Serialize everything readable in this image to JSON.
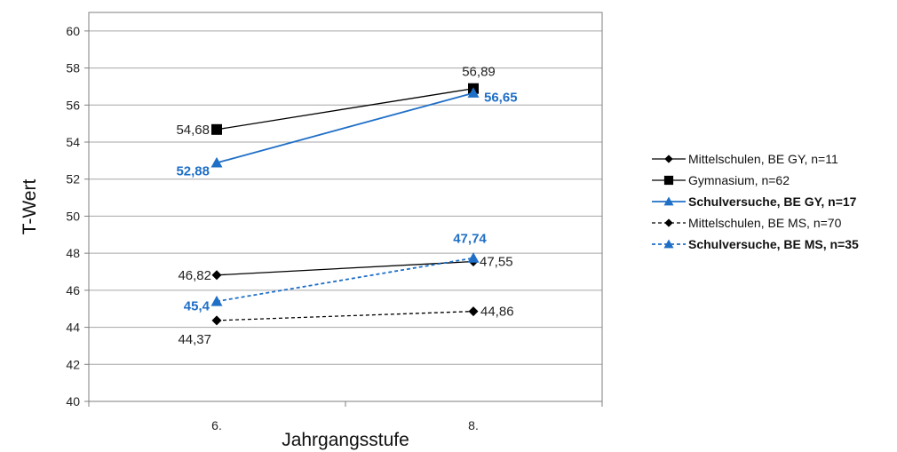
{
  "chart_data": {
    "type": "line",
    "categories": [
      "6.",
      "8."
    ],
    "xlabel": "Jahrgangsstufe",
    "ylabel": "T-Wert",
    "ylim": [
      40,
      61
    ],
    "yticks": [
      "40",
      "42",
      "44",
      "46",
      "48",
      "50",
      "52",
      "54",
      "56",
      "58",
      "60"
    ],
    "grid": true,
    "legend_position": "right",
    "series": [
      {
        "name": "Mittelschulen, BE GY, n=11",
        "values": [
          46.82,
          47.55
        ],
        "labels": [
          "46,82",
          "47,55"
        ],
        "color": "#000000",
        "marker": "diamond",
        "dash": "solid",
        "bold": false
      },
      {
        "name": "Gymnasium, n=62",
        "values": [
          54.68,
          56.89
        ],
        "labels": [
          "54,68",
          "56,89"
        ],
        "color": "#000000",
        "marker": "square",
        "dash": "solid",
        "bold": false
      },
      {
        "name": "Schulversuche, BE GY, n=17",
        "values": [
          52.88,
          56.65
        ],
        "labels": [
          "52,88",
          "56,65"
        ],
        "color": "#1f6fc7",
        "marker": "triangle",
        "dash": "solid",
        "bold": true
      },
      {
        "name": "Mittelschulen, BE MS, n=70",
        "values": [
          44.37,
          44.86
        ],
        "labels": [
          "44,37",
          "44,86"
        ],
        "color": "#000000",
        "marker": "diamond",
        "dash": "dashed",
        "bold": false
      },
      {
        "name": "Schulversuche, BE MS, n=35",
        "values": [
          45.4,
          47.74
        ],
        "labels": [
          "45,4",
          "47,74"
        ],
        "color": "#1f6fc7",
        "marker": "triangle",
        "dash": "dashed",
        "bold": true
      }
    ]
  }
}
